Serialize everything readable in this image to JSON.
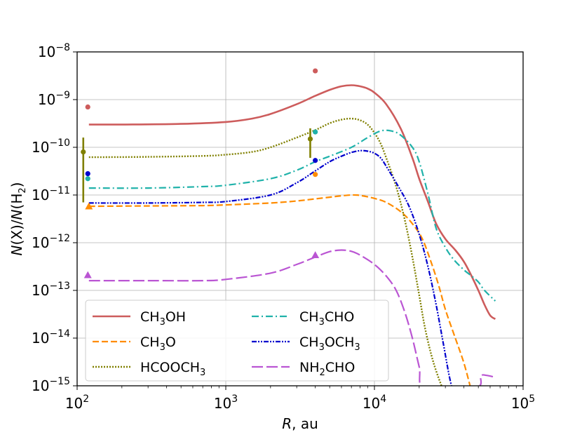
{
  "chart_data": {
    "type": "line",
    "xscale": "log",
    "yscale": "log",
    "xlim": [
      100,
      100000
    ],
    "ylim": [
      1e-15,
      1e-08
    ],
    "grid": true,
    "xlabel": {
      "italic": "R",
      "rest": ", au"
    },
    "ylabel": "N(X)/N(H2)",
    "xticks": [
      {
        "value": 100,
        "base": "10",
        "exp": "2"
      },
      {
        "value": 1000,
        "base": "10",
        "exp": "3"
      },
      {
        "value": 10000,
        "base": "10",
        "exp": "4"
      },
      {
        "value": 100000,
        "base": "10",
        "exp": "5"
      }
    ],
    "yticks": [
      {
        "value": 1e-15,
        "base": "10",
        "exp": "−15"
      },
      {
        "value": 1e-14,
        "base": "10",
        "exp": "−14"
      },
      {
        "value": 1e-13,
        "base": "10",
        "exp": "−13"
      },
      {
        "value": 1e-12,
        "base": "10",
        "exp": "−12"
      },
      {
        "value": 1e-11,
        "base": "10",
        "exp": "−11"
      },
      {
        "value": 1e-10,
        "base": "10",
        "exp": "−10"
      },
      {
        "value": 1e-09,
        "base": "10",
        "exp": "−9"
      },
      {
        "value": 1e-08,
        "base": "10",
        "exp": "−8"
      }
    ],
    "legend_position": "lower-left",
    "series": [
      {
        "name": "CH3OH",
        "label_parts": [
          [
            "CH",
            false
          ],
          [
            "3",
            true
          ],
          [
            "OH",
            false
          ]
        ],
        "color": "#cd5c5c",
        "dash": "",
        "width": 2.6,
        "points": [
          [
            120,
            3e-10
          ],
          [
            200,
            3e-10
          ],
          [
            500,
            3.1e-10
          ],
          [
            1000,
            3.4e-10
          ],
          [
            1500,
            4e-10
          ],
          [
            2000,
            5e-10
          ],
          [
            3000,
            8e-10
          ],
          [
            4000,
            1.2e-09
          ],
          [
            5000,
            1.6e-09
          ],
          [
            6000,
            1.9e-09
          ],
          [
            7000,
            2e-09
          ],
          [
            8000,
            1.9e-09
          ],
          [
            9000,
            1.7e-09
          ],
          [
            10000,
            1.4e-09
          ],
          [
            12000,
            8e-10
          ],
          [
            15000,
            2.5e-10
          ],
          [
            18000,
            6e-11
          ],
          [
            20000,
            2.2e-11
          ],
          [
            23000,
            7e-12
          ],
          [
            26000,
            2.5e-12
          ],
          [
            30000,
            1.2e-12
          ],
          [
            35000,
            7e-13
          ],
          [
            40000,
            4e-13
          ],
          [
            45000,
            2e-13
          ],
          [
            50000,
            1e-13
          ],
          [
            55000,
            5e-14
          ],
          [
            60000,
            3e-14
          ],
          [
            65000,
            2.5e-14
          ]
        ]
      },
      {
        "name": "CH3O",
        "label_parts": [
          [
            "CH",
            false
          ],
          [
            "3",
            true
          ],
          [
            "O",
            false
          ]
        ],
        "color": "#ff8c00",
        "dash": "9 4",
        "width": 2.2,
        "points": [
          [
            120,
            5.8e-12
          ],
          [
            300,
            5.9e-12
          ],
          [
            700,
            6e-12
          ],
          [
            1000,
            6.2e-12
          ],
          [
            2000,
            6.8e-12
          ],
          [
            3000,
            7.5e-12
          ],
          [
            4000,
            8.3e-12
          ],
          [
            5000,
            9e-12
          ],
          [
            6000,
            9.6e-12
          ],
          [
            7000,
            1e-11
          ],
          [
            8000,
            9.8e-12
          ],
          [
            10000,
            8.5e-12
          ],
          [
            12000,
            7e-12
          ],
          [
            15000,
            4.5e-12
          ],
          [
            18000,
            2.5e-12
          ],
          [
            21000,
            1.2e-12
          ],
          [
            24000,
            4e-13
          ],
          [
            27000,
            1.3e-13
          ],
          [
            30000,
            4e-14
          ],
          [
            35000,
            1e-14
          ],
          [
            40000,
            3e-15
          ],
          [
            44000,
            1e-15
          ]
        ]
      },
      {
        "name": "HCOOCH3",
        "label_parts": [
          [
            "HCOOCH",
            false
          ],
          [
            "3",
            true
          ]
        ],
        "color": "#808000",
        "dash": "2 2",
        "width": 2.4,
        "points": [
          [
            120,
            6.2e-11
          ],
          [
            300,
            6.3e-11
          ],
          [
            700,
            6.6e-11
          ],
          [
            1000,
            7e-11
          ],
          [
            1500,
            8e-11
          ],
          [
            2000,
            1e-10
          ],
          [
            3000,
            1.6e-10
          ],
          [
            4000,
            2.3e-10
          ],
          [
            5000,
            3.2e-10
          ],
          [
            6000,
            3.8e-10
          ],
          [
            7000,
            4e-10
          ],
          [
            8000,
            3.7e-10
          ],
          [
            9000,
            3e-10
          ],
          [
            10000,
            2e-10
          ],
          [
            11000,
            1.2e-10
          ],
          [
            12000,
            6e-11
          ],
          [
            14000,
            1.5e-11
          ],
          [
            16000,
            3e-12
          ],
          [
            18000,
            5e-13
          ],
          [
            20000,
            8e-14
          ],
          [
            22000,
            1.5e-14
          ],
          [
            25000,
            3e-15
          ],
          [
            29000,
            8e-16
          ]
        ]
      },
      {
        "name": "CH3CHO",
        "label_parts": [
          [
            "CH",
            false
          ],
          [
            "3",
            true
          ],
          [
            "CHO",
            false
          ]
        ],
        "color": "#20b2aa",
        "dash": "10 4 2 4",
        "width": 2.2,
        "points": [
          [
            120,
            1.4e-11
          ],
          [
            300,
            1.4e-11
          ],
          [
            700,
            1.5e-11
          ],
          [
            1000,
            1.6e-11
          ],
          [
            2000,
            2.2e-11
          ],
          [
            3000,
            3.3e-11
          ],
          [
            4000,
            5e-11
          ],
          [
            5000,
            6.5e-11
          ],
          [
            7000,
            1e-10
          ],
          [
            9000,
            1.6e-10
          ],
          [
            11000,
            2.2e-10
          ],
          [
            13000,
            2.2e-10
          ],
          [
            15000,
            1.8e-10
          ],
          [
            18000,
            1e-10
          ],
          [
            20000,
            5e-11
          ],
          [
            23000,
            1e-11
          ],
          [
            26000,
            2e-12
          ],
          [
            30000,
            8e-13
          ],
          [
            34000,
            4.5e-13
          ],
          [
            40000,
            2.7e-13
          ],
          [
            45000,
            2e-13
          ],
          [
            50000,
            1.5e-13
          ],
          [
            55000,
            1e-13
          ],
          [
            65000,
            6e-14
          ]
        ]
      },
      {
        "name": "CH3OCH3",
        "label_parts": [
          [
            "CH",
            false
          ],
          [
            "3",
            true
          ],
          [
            "OCH",
            false
          ],
          [
            "3",
            true
          ]
        ],
        "color": "#0000cd",
        "dash": "7 2 2 2 2 2",
        "width": 2.2,
        "points": [
          [
            120,
            6.8e-12
          ],
          [
            300,
            6.8e-12
          ],
          [
            700,
            7e-12
          ],
          [
            1000,
            7.3e-12
          ],
          [
            2000,
            1e-11
          ],
          [
            3000,
            1.8e-11
          ],
          [
            4000,
            3.2e-11
          ],
          [
            5000,
            5e-11
          ],
          [
            6000,
            6.5e-11
          ],
          [
            7000,
            7.8e-11
          ],
          [
            8000,
            8.5e-11
          ],
          [
            9000,
            8.3e-11
          ],
          [
            10000,
            7.5e-11
          ],
          [
            11000,
            6e-11
          ],
          [
            12000,
            4e-11
          ],
          [
            14000,
            1.8e-11
          ],
          [
            17000,
            6e-12
          ],
          [
            20000,
            1.5e-12
          ],
          [
            23000,
            3e-13
          ],
          [
            26000,
            5e-14
          ],
          [
            29000,
            8e-15
          ],
          [
            32000,
            1.5e-15
          ],
          [
            34000,
            8e-16
          ],
          [
            36000,
            1e-15
          ]
        ]
      },
      {
        "name": "NH2CHO",
        "label_parts": [
          [
            "NH",
            false
          ],
          [
            "2",
            true
          ],
          [
            "CHO",
            false
          ]
        ],
        "color": "#ba55d3",
        "dash": "16 5",
        "width": 2.2,
        "points": [
          [
            120,
            1.6e-13
          ],
          [
            300,
            1.6e-13
          ],
          [
            700,
            1.6e-13
          ],
          [
            1000,
            1.7e-13
          ],
          [
            2000,
            2.3e-13
          ],
          [
            3000,
            3.5e-13
          ],
          [
            4000,
            5e-13
          ],
          [
            5000,
            6.5e-13
          ],
          [
            6000,
            7e-13
          ],
          [
            7000,
            6.6e-13
          ],
          [
            8000,
            5.5e-13
          ],
          [
            10000,
            3.5e-13
          ],
          [
            12000,
            2e-13
          ],
          [
            14000,
            1e-13
          ],
          [
            16000,
            3.5e-14
          ],
          [
            18000,
            1e-14
          ],
          [
            20000,
            2.5e-15
          ],
          [
            22000,
            8e-16
          ],
          [
            48000,
            9e-16
          ],
          [
            52000,
            1.6e-15
          ],
          [
            57000,
            1.65e-15
          ],
          [
            65000,
            1.5e-15
          ]
        ]
      }
    ],
    "observations": [
      {
        "species": "CH3OH",
        "marker": "circle",
        "x": 118,
        "y": 7e-10
      },
      {
        "species": "CH3OH",
        "marker": "circle",
        "x": 4000,
        "y": 4e-09
      },
      {
        "species": "CH3O",
        "marker": "triangle",
        "x": 120,
        "y": 5.8e-12
      },
      {
        "species": "CH3O",
        "marker": "circle",
        "x": 4000,
        "y": 2.7e-11
      },
      {
        "species": "HCOOCH3",
        "marker": "circle",
        "x": 110,
        "y": 8e-11,
        "err": [
          7e-12,
          1.6e-10
        ]
      },
      {
        "species": "HCOOCH3",
        "marker": "circle",
        "x": 3700,
        "y": 1.5e-10,
        "err": [
          6e-11,
          2.5e-10
        ]
      },
      {
        "species": "CH3CHO",
        "marker": "circle",
        "x": 118,
        "y": 2.2e-11
      },
      {
        "species": "CH3CHO",
        "marker": "circle",
        "x": 4000,
        "y": 2.1e-10
      },
      {
        "species": "CH3OCH3",
        "marker": "circle",
        "x": 118,
        "y": 2.8e-11
      },
      {
        "species": "CH3OCH3",
        "marker": "circle",
        "x": 4000,
        "y": 5.3e-11
      },
      {
        "species": "NH2CHO",
        "marker": "triangle",
        "x": 118,
        "y": 2.1e-13
      },
      {
        "species": "NH2CHO",
        "marker": "triangle",
        "x": 4000,
        "y": 5.5e-13
      }
    ]
  }
}
